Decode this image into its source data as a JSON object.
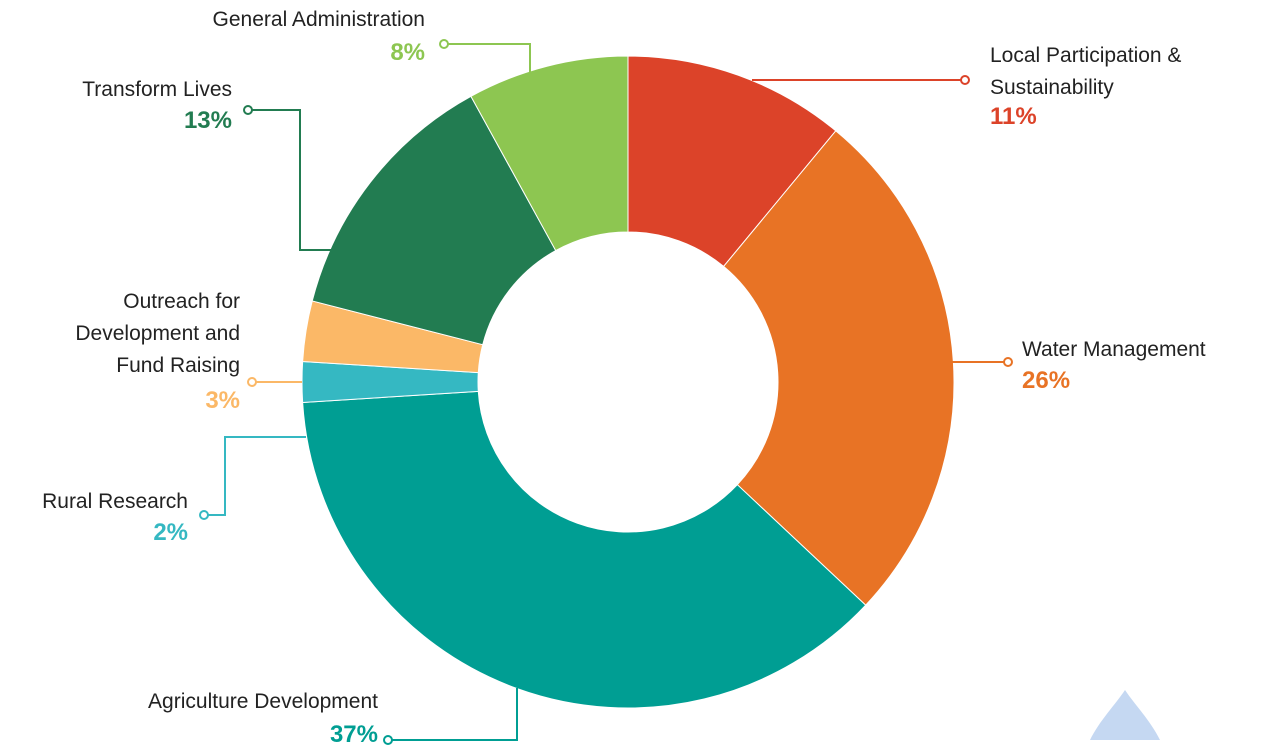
{
  "chart_data": {
    "type": "donut",
    "categories": [
      "Local Participation & Sustainability",
      "Water Management",
      "Agriculture Development",
      "Rural Research",
      "Outreach for Development and Fund Raising",
      "Transform Lives",
      "General Administration"
    ],
    "values": [
      11,
      26,
      37,
      2,
      3,
      13,
      8
    ],
    "value_labels": [
      "11%",
      "26%",
      "37%",
      "2%",
      "3%",
      "13%",
      "8%"
    ],
    "colors": [
      "#dc4329",
      "#e87325",
      "#009e93",
      "#35b8c2",
      "#fbb867",
      "#227c51",
      "#8dc651"
    ]
  }
}
